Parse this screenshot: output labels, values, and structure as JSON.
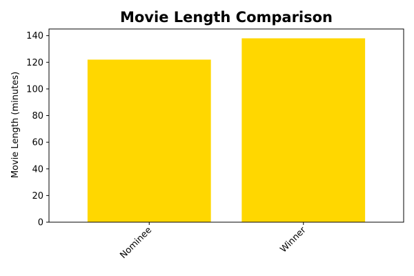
{
  "chart_data": {
    "type": "bar",
    "title": "Movie Length Comparison",
    "xlabel": "",
    "ylabel": "Movie Length (minutes)",
    "categories": [
      "Nominee",
      "Winner"
    ],
    "values": [
      122,
      138
    ],
    "ylim": [
      0,
      145
    ],
    "yticks": [
      0,
      20,
      40,
      60,
      80,
      100,
      120,
      140
    ],
    "bar_color": "#FFD700",
    "grid": false,
    "legend": "none",
    "xtick_rotation": 45
  }
}
